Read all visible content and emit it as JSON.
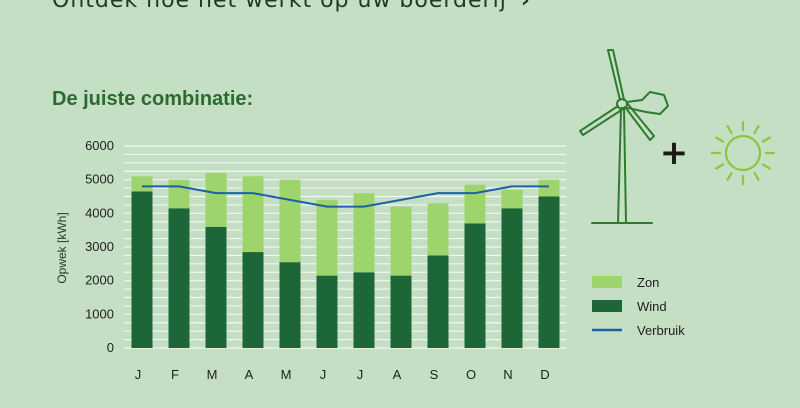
{
  "header": {
    "link_text": "Ontdek hoe het werkt op uw boerderij",
    "link_chevron": "›"
  },
  "subtitle": "De juiste combinatie:",
  "plus_sign": "+",
  "icons": [
    "wind-turbine-icon",
    "plus-icon",
    "sun-icon"
  ],
  "colors": {
    "zon": "#9ed46c",
    "wind": "#1d6637",
    "verbruik": "#1d60a8",
    "subtitle": "#2b6b2f"
  },
  "chart_data": {
    "type": "bar",
    "stacked": true,
    "categories": [
      "J",
      "F",
      "M",
      "A",
      "M",
      "J",
      "J",
      "A",
      "S",
      "O",
      "N",
      "D"
    ],
    "series": [
      {
        "name": "Wind",
        "values": [
          4650,
          4150,
          3600,
          2850,
          2550,
          2150,
          2250,
          2150,
          2750,
          3700,
          4150,
          4500
        ]
      },
      {
        "name": "Zon",
        "values": [
          450,
          850,
          1600,
          2250,
          2450,
          2250,
          2350,
          2050,
          1550,
          1150,
          550,
          500
        ]
      }
    ],
    "line": {
      "name": "Verbruik",
      "values": [
        4800,
        4800,
        4600,
        4600,
        4400,
        4200,
        4200,
        4400,
        4600,
        4600,
        4800,
        4800
      ]
    },
    "title": "",
    "xlabel": "",
    "ylabel": "Opwek [kWh]",
    "ylim": [
      0,
      6000
    ],
    "yticks": [
      0,
      1000,
      2000,
      3000,
      4000,
      5000,
      6000
    ],
    "grid": true,
    "legend": {
      "position": "right",
      "entries": [
        "Zon",
        "Wind",
        "Verbruik"
      ]
    }
  }
}
